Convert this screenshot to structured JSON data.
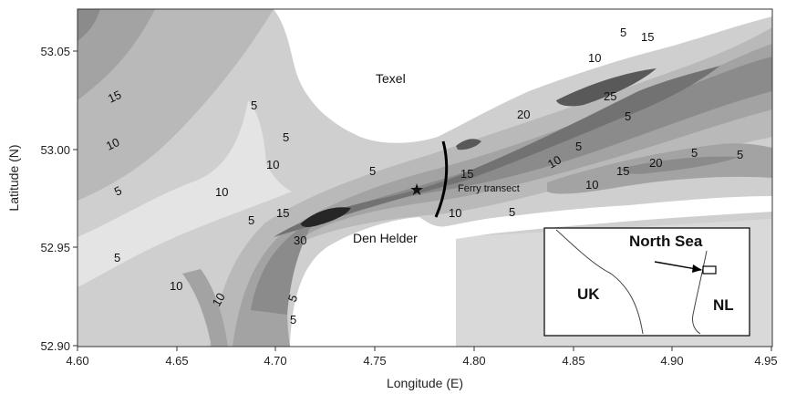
{
  "axes": {
    "xlabel": "Longitude (E)",
    "ylabel": "Latitude (N)",
    "xticks": [
      "4.60",
      "4.65",
      "4.70",
      "4.75",
      "4.80",
      "4.85",
      "4.90",
      "4.95"
    ],
    "yticks": [
      "53.05",
      "53.00",
      "52.95",
      "52.90"
    ]
  },
  "places": {
    "texel": "Texel",
    "den_helder": "Den Helder",
    "ferry_transect": "Ferry transect"
  },
  "contours": {
    "c1": "15",
    "c2": "10",
    "c3": "5",
    "c4": "5",
    "c5": "5",
    "c6": "10",
    "c7": "5",
    "c8": "10",
    "c9": "5",
    "c10": "15",
    "c11": "30",
    "c12": "10",
    "c13": "5",
    "c14": "10",
    "c15": "5",
    "c16": "5",
    "c17": "15",
    "c18": "10",
    "c19": "5",
    "c20": "10",
    "c21": "15",
    "c22": "20",
    "c23": "10",
    "c24": "5",
    "c25": "15",
    "c26": "10",
    "c27": "25",
    "c28": "5",
    "c29": "20",
    "c30": "5",
    "c31": "5",
    "c32": "5"
  },
  "inset": {
    "north_sea": "North Sea",
    "uk": "UK",
    "nl": "NL"
  },
  "colors": {
    "land": "#ffffff",
    "shade_0_5": "#cfcfcf",
    "shade_5_10": "#b9b9b9",
    "shade_10_15": "#a3a3a3",
    "shade_15_20": "#8b8b8b",
    "shade_20_25": "#727272",
    "shade_25_30": "#595959",
    "shade_30_plus": "#262626"
  }
}
